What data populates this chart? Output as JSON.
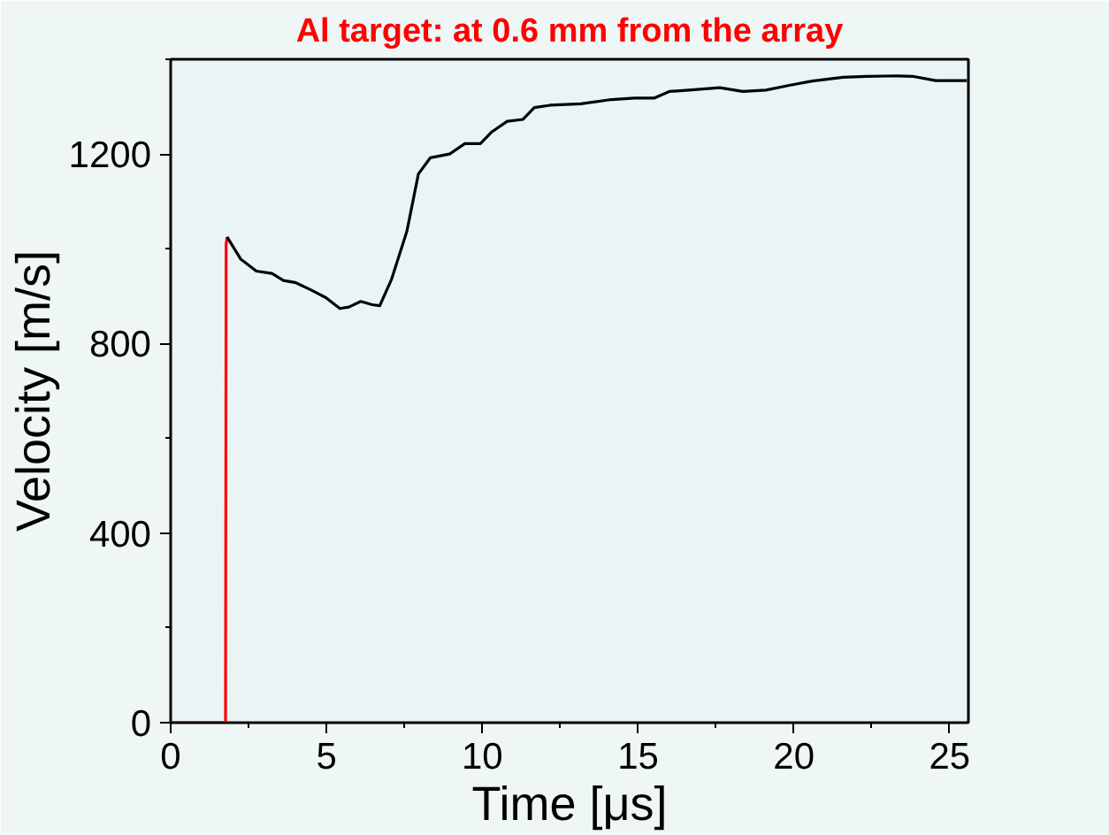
{
  "chart_data": {
    "type": "line",
    "title": "Al target: at 0.6 mm from the array",
    "xlabel": "Time [μs]",
    "ylabel": "Velocity [m/s]",
    "xlim": [
      0,
      25.6
    ],
    "ylim": [
      0,
      1400
    ],
    "xticks": [
      0,
      5,
      10,
      15,
      20,
      25
    ],
    "yticks": [
      0,
      400,
      800,
      1200
    ],
    "grid": false,
    "marker": "none",
    "line_style": "solid",
    "series": [
      {
        "color": "#ff0000",
        "x": [
          0,
          1.76,
          1.78,
          1.81
        ],
        "values": [
          0,
          0,
          1010,
          1025
        ]
      },
      {
        "color": "#000000",
        "x": [
          1.81,
          2.25,
          2.75,
          3.25,
          3.62,
          3.99,
          4.48,
          4.98,
          5.43,
          5.72,
          6.1,
          6.47,
          6.71,
          7.09,
          7.58,
          7.95,
          8.33,
          8.95,
          9.44,
          9.94,
          10.31,
          10.8,
          11.3,
          11.67,
          12.17,
          13.16,
          14.15,
          14.89,
          15.51,
          16.0,
          16.63,
          17.62,
          18.36,
          19.1,
          19.85,
          20.59,
          21.58,
          22.32,
          23.31,
          23.81,
          24.55,
          25.55
        ],
        "values": [
          1025,
          978,
          953,
          948,
          933,
          929,
          914,
          897,
          874,
          877,
          889,
          882,
          880,
          936,
          1037,
          1158,
          1192,
          1200,
          1222,
          1222,
          1247,
          1269,
          1273,
          1298,
          1303,
          1306,
          1315,
          1318,
          1318,
          1332,
          1335,
          1340,
          1332,
          1335,
          1345,
          1354,
          1362,
          1364,
          1365,
          1364,
          1355,
          1355
        ]
      }
    ]
  }
}
